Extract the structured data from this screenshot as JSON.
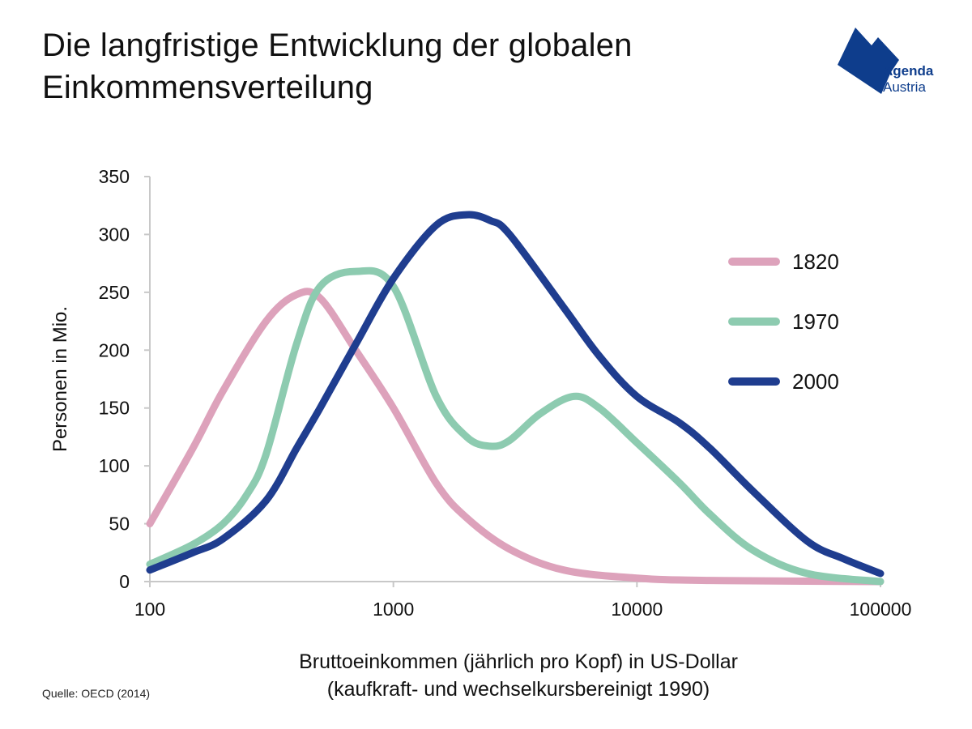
{
  "header": {
    "title_line1": "Die langfristige Entwicklung der globalen",
    "title_line2": "Einkommensverteilung"
  },
  "logo": {
    "line1": "Agenda",
    "line2": "Austria",
    "color": "#0e3d8c"
  },
  "footer": {
    "source": "Quelle: OECD (2014)"
  },
  "chart_data": {
    "type": "line",
    "xscale": "log",
    "xlim": [
      100,
      100000
    ],
    "ylim": [
      0,
      350
    ],
    "x_ticks": [
      100,
      1000,
      10000,
      100000
    ],
    "y_ticks": [
      0,
      50,
      100,
      150,
      200,
      250,
      300,
      350
    ],
    "ylabel": "Personen in Mio.",
    "xlabel_line1": "Bruttoeinkommen (jährlich pro Kopf) in US-Dollar",
    "xlabel_line2": "(kaufkraft- und wechselkursbereinigt 1990)",
    "grid": false,
    "legend_position": "top-right",
    "series": [
      {
        "name": "1820",
        "color": "#dda2bb",
        "points": [
          [
            100,
            50
          ],
          [
            150,
            115
          ],
          [
            200,
            165
          ],
          [
            300,
            225
          ],
          [
            400,
            248
          ],
          [
            500,
            245
          ],
          [
            700,
            200
          ],
          [
            1000,
            150
          ],
          [
            1500,
            85
          ],
          [
            2000,
            55
          ],
          [
            3000,
            28
          ],
          [
            5000,
            10
          ],
          [
            10000,
            3
          ],
          [
            20000,
            1
          ],
          [
            100000,
            0
          ]
        ]
      },
      {
        "name": "1970",
        "color": "#8dcbb0",
        "points": [
          [
            100,
            15
          ],
          [
            150,
            32
          ],
          [
            200,
            50
          ],
          [
            250,
            75
          ],
          [
            300,
            110
          ],
          [
            400,
            205
          ],
          [
            500,
            255
          ],
          [
            700,
            268
          ],
          [
            1000,
            255
          ],
          [
            1500,
            160
          ],
          [
            2000,
            125
          ],
          [
            2500,
            117
          ],
          [
            3000,
            122
          ],
          [
            4000,
            145
          ],
          [
            5500,
            160
          ],
          [
            7000,
            150
          ],
          [
            10000,
            120
          ],
          [
            15000,
            85
          ],
          [
            20000,
            58
          ],
          [
            30000,
            27
          ],
          [
            50000,
            7
          ],
          [
            100000,
            0
          ]
        ]
      },
      {
        "name": "2000",
        "color": "#1f3d8f",
        "points": [
          [
            100,
            10
          ],
          [
            150,
            25
          ],
          [
            200,
            37
          ],
          [
            300,
            70
          ],
          [
            400,
            115
          ],
          [
            500,
            150
          ],
          [
            700,
            205
          ],
          [
            1000,
            262
          ],
          [
            1500,
            308
          ],
          [
            2000,
            317
          ],
          [
            2500,
            312
          ],
          [
            3000,
            300
          ],
          [
            5000,
            237
          ],
          [
            7000,
            195
          ],
          [
            10000,
            160
          ],
          [
            15000,
            137
          ],
          [
            20000,
            115
          ],
          [
            30000,
            78
          ],
          [
            50000,
            35
          ],
          [
            70000,
            20
          ],
          [
            100000,
            7
          ]
        ]
      }
    ]
  }
}
